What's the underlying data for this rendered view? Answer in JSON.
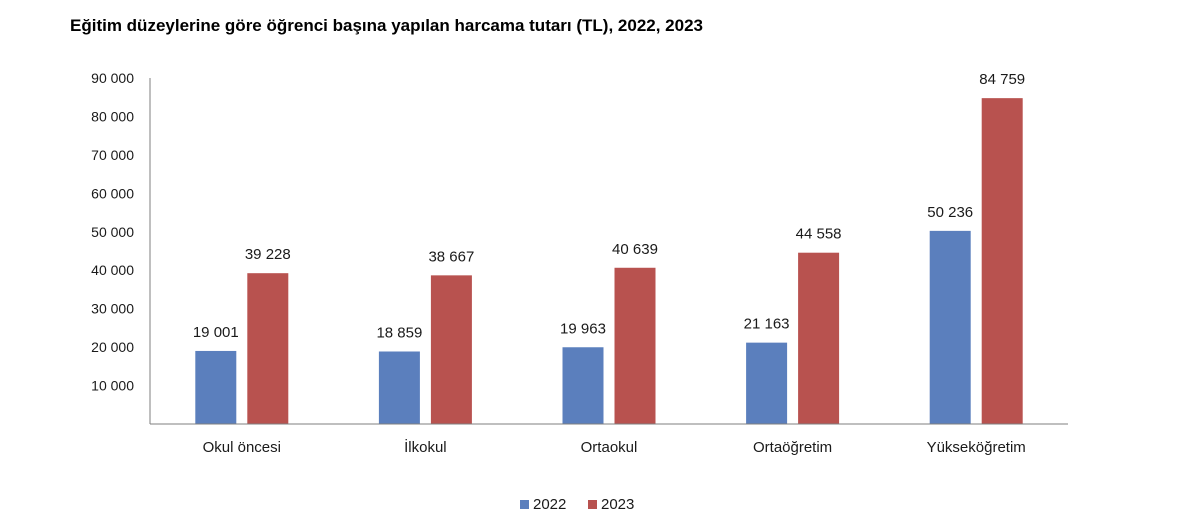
{
  "chart_data": {
    "type": "bar",
    "title": "Eğitim düzeylerine göre öğrenci başına yapılan harcama tutarı (TL), 2022, 2023",
    "categories": [
      "Okul öncesi",
      "İlkokul",
      "Ortaokul",
      "Ortaöğretim",
      "Yükseköğretim"
    ],
    "series": [
      {
        "name": "2022",
        "values": [
          19001,
          18859,
          19963,
          21163,
          50236
        ],
        "labels": [
          "19 001",
          "18 859",
          "19 963",
          "21 163",
          "50 236"
        ],
        "color": "#5b7fbd"
      },
      {
        "name": "2023",
        "values": [
          39228,
          38667,
          40639,
          44558,
          84759
        ],
        "labels": [
          "39 228",
          "38 667",
          "40 639",
          "44 558",
          "84 759"
        ],
        "color": "#b8524f"
      }
    ],
    "yticks": [
      10000,
      20000,
      30000,
      40000,
      50000,
      60000,
      70000,
      80000,
      90000
    ],
    "ytick_labels": [
      "10 000",
      "20 000",
      "30 000",
      "40 000",
      "50 000",
      "60 000",
      "70 000",
      "80 000",
      "90 000"
    ],
    "ylim": [
      0,
      90000
    ],
    "xlabel": "",
    "ylabel": "",
    "grid": false,
    "legend_position": "bottom"
  }
}
